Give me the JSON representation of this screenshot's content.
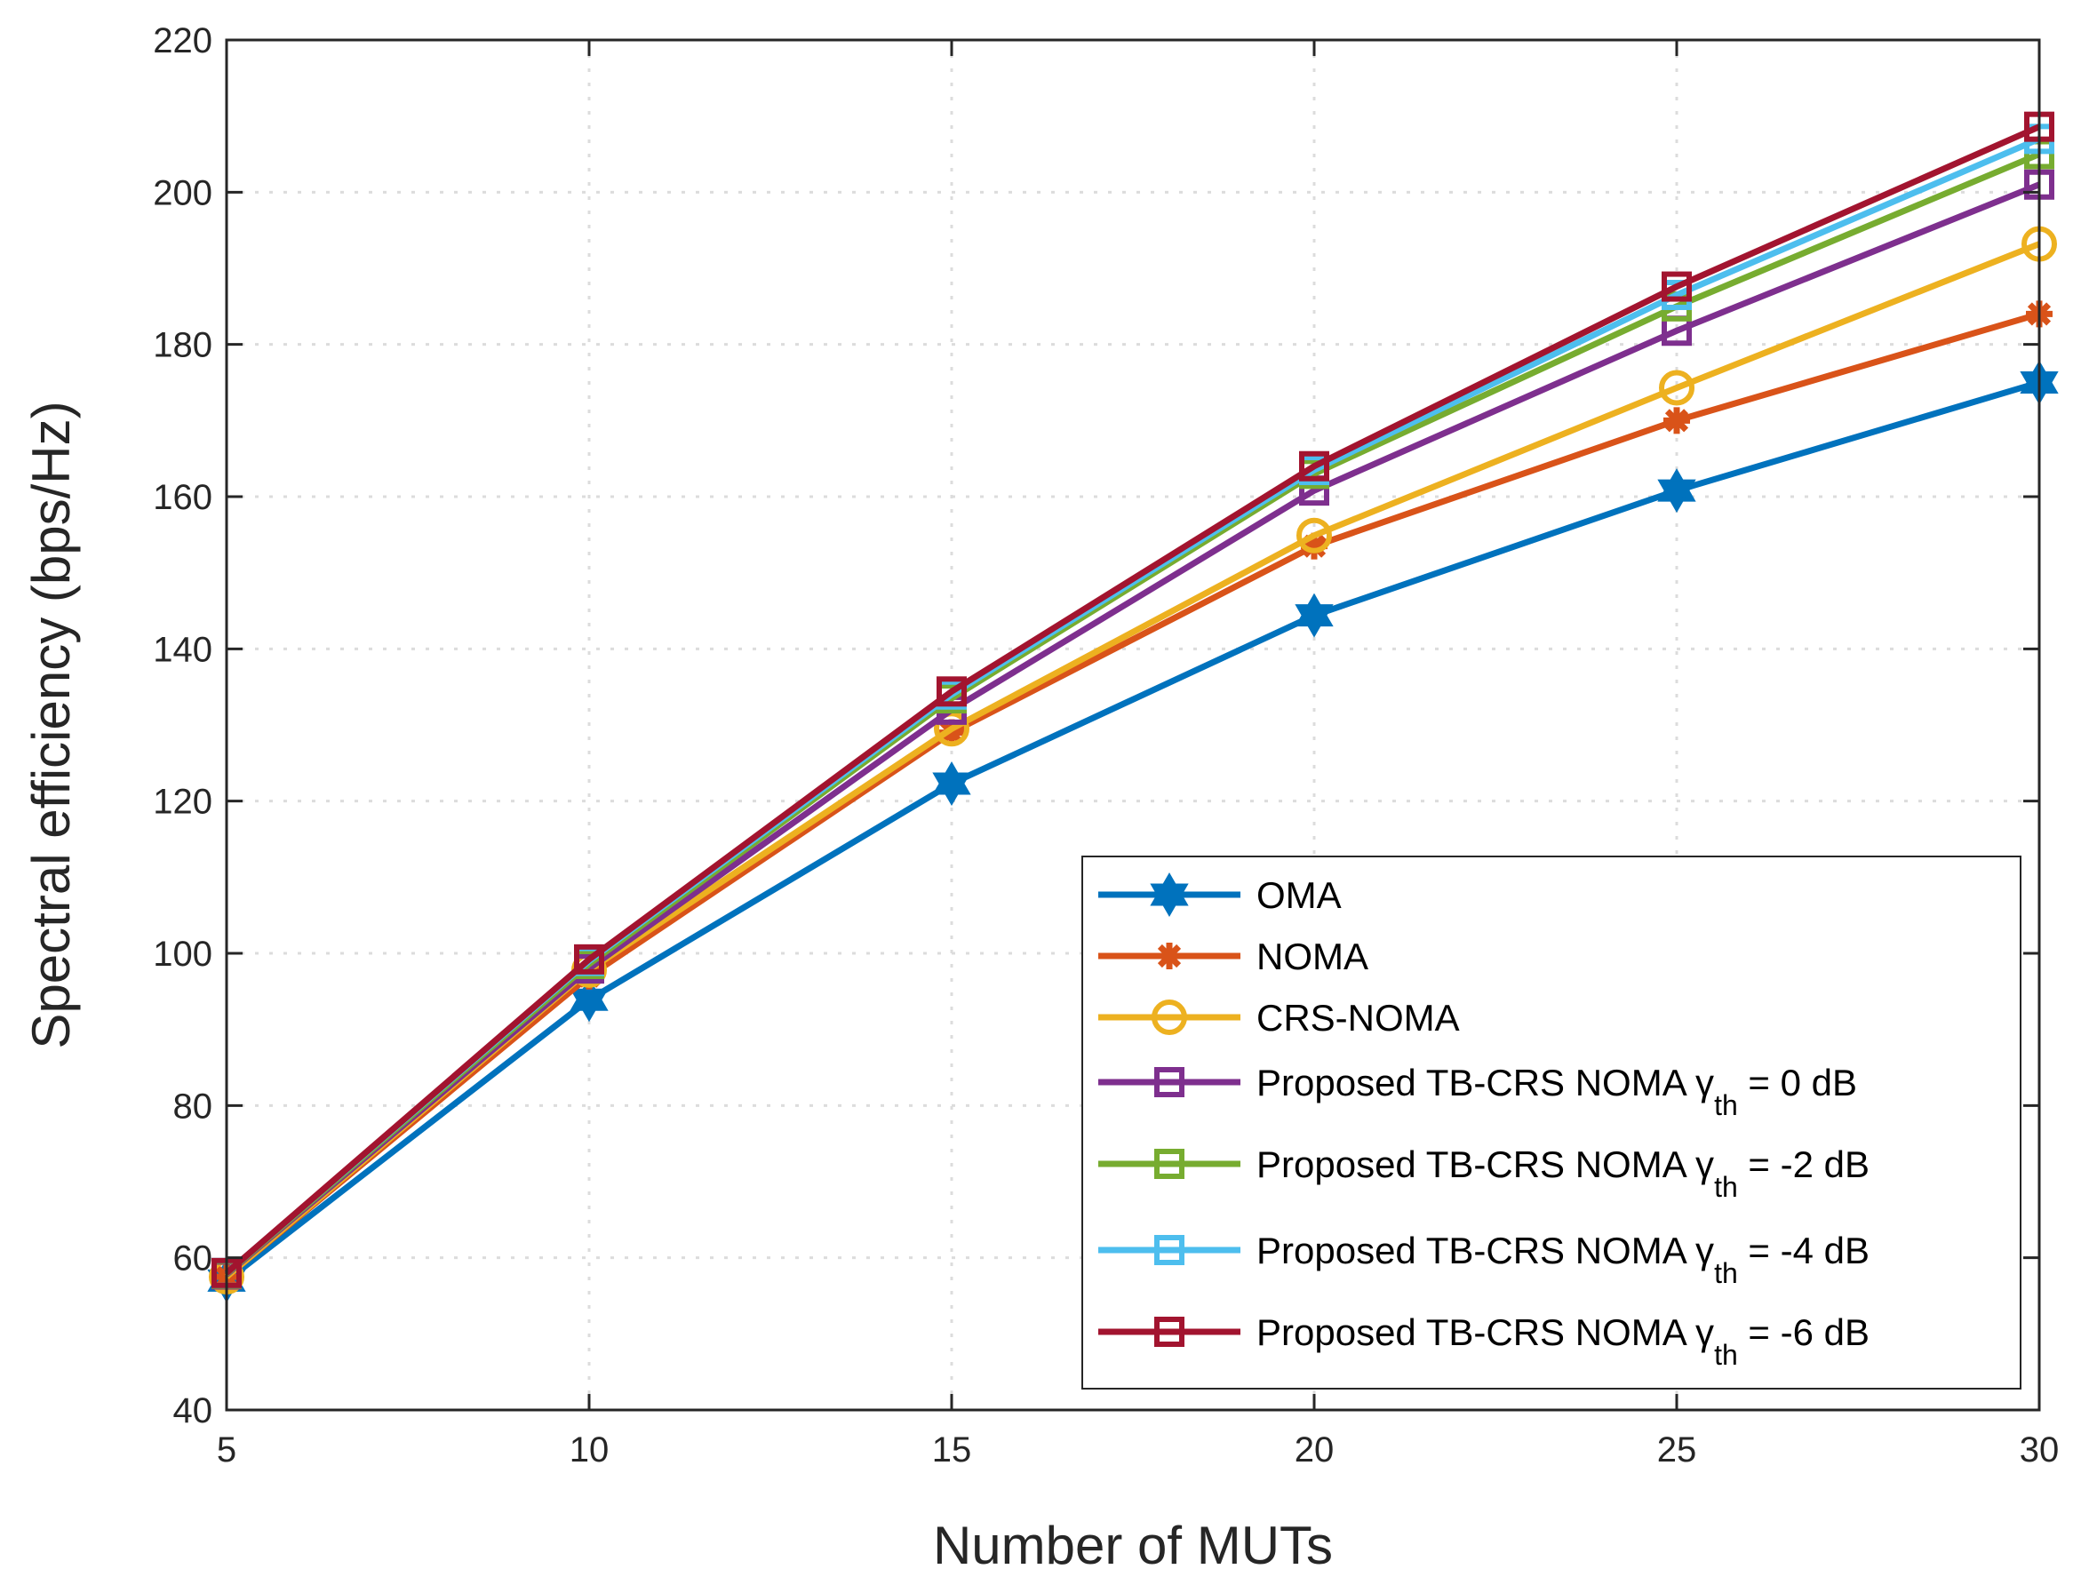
{
  "chart_data": {
    "type": "line",
    "title": "",
    "xlabel": "Number of MUTs",
    "ylabel": "Spectral efficiency (bps/Hz)",
    "xlim": [
      5,
      30
    ],
    "ylim": [
      40,
      220
    ],
    "xticks": [
      5,
      10,
      15,
      20,
      25,
      30
    ],
    "yticks": [
      40,
      60,
      80,
      100,
      120,
      140,
      160,
      180,
      200,
      220
    ],
    "grid": true,
    "legend_position": "bottom-right",
    "x": [
      5,
      10,
      15,
      20,
      25,
      30
    ],
    "series": [
      {
        "name": "OMA",
        "legend_main": "OMA",
        "legend_sub": "",
        "legend_tail": "",
        "color": "#0072BD",
        "marker": "hexagram",
        "values": [
          57.0,
          93.9,
          122.3,
          144.4,
          160.8,
          175.0
        ]
      },
      {
        "name": "NOMA",
        "legend_main": "NOMA",
        "legend_sub": "",
        "legend_tail": "",
        "color": "#D95319",
        "marker": "asterisk",
        "values": [
          57.5,
          97.0,
          129.0,
          153.5,
          170.0,
          184.0
        ]
      },
      {
        "name": "CRS-NOMA",
        "legend_main": "CRS-NOMA",
        "legend_sub": "",
        "legend_tail": "",
        "color": "#EDB120",
        "marker": "circle",
        "values": [
          57.5,
          97.8,
          129.5,
          154.9,
          174.3,
          193.2
        ]
      },
      {
        "name": "Proposed TB-CRS NOMA γth = 0 dB",
        "legend_main": "Proposed TB-CRS NOMA γ",
        "legend_sub": "th",
        "legend_tail": " = 0 dB",
        "color": "#7E2F8E",
        "marker": "square",
        "values": [
          57.8,
          98.0,
          132.0,
          160.8,
          181.8,
          201.0
        ]
      },
      {
        "name": "Proposed TB-CRS NOMA γth = -2 dB",
        "legend_main": "Proposed TB-CRS NOMA γ",
        "legend_sub": "th",
        "legend_tail": " = -2 dB",
        "color": "#77AC30",
        "marker": "square",
        "values": [
          57.9,
          98.6,
          133.5,
          163.0,
          185.0,
          205.0
        ]
      },
      {
        "name": "Proposed TB-CRS NOMA γth = -4 dB",
        "legend_main": "Proposed TB-CRS NOMA γ",
        "legend_sub": "th",
        "legend_tail": " = -4 dB",
        "color": "#4DBEEE",
        "marker": "square",
        "values": [
          58.0,
          99.0,
          134.0,
          163.5,
          186.5,
          207.0
        ]
      },
      {
        "name": "Proposed TB-CRS NOMA γth = -6 dB",
        "legend_main": "Proposed TB-CRS NOMA γ",
        "legend_sub": "th",
        "legend_tail": " = -6 dB",
        "color": "#A2142F",
        "marker": "square",
        "values": [
          58.0,
          99.2,
          134.4,
          164.0,
          187.6,
          208.6
        ]
      }
    ]
  }
}
